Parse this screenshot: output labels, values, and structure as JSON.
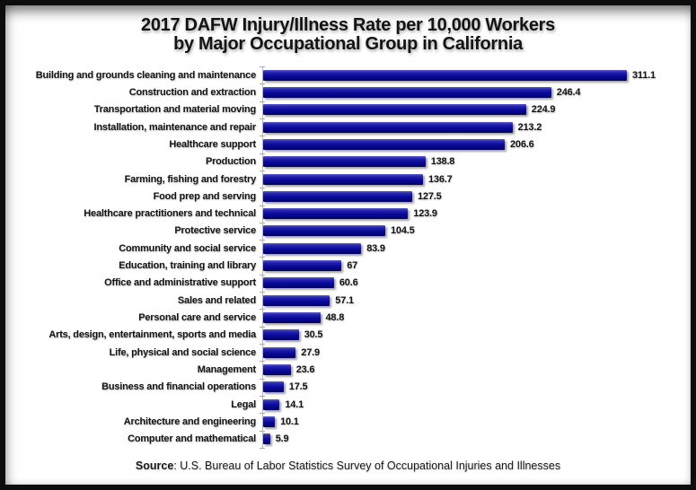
{
  "title": {
    "line1": "2017 DAFW Injury/Illness Rate per 10,000 Workers",
    "line2": "by Major Occupational Group in California"
  },
  "source": {
    "label": "Source",
    "rest": ": U.S. Bureau of Labor Statistics Survey of Occupational Injuries and Illnesses"
  },
  "chart_data": {
    "type": "bar",
    "orientation": "horizontal",
    "title": "2017 DAFW Injury/Illness Rate per 10,000 Workers by Major Occupational Group in California",
    "xlabel": "",
    "ylabel": "",
    "xlim": [
      0,
      330
    ],
    "grid": false,
    "legend": false,
    "value_labels": true,
    "sort": "descending",
    "categories": [
      "Building and grounds cleaning and maintenance",
      "Construction and extraction",
      "Transportation and material moving",
      "Installation, maintenance and repair",
      "Healthcare support",
      "Production",
      "Farming, fishing and forestry",
      "Food prep and serving",
      "Healthcare practitioners and technical",
      "Protective service",
      "Community and social service",
      "Education, training and library",
      "Office and administrative support",
      "Sales and related",
      "Personal care and service",
      "Arts, design, entertainment, sports and media",
      "Life, physical and social science",
      "Management",
      "Business and financial operations",
      "Legal",
      "Architecture and engineering",
      "Computer and mathematical"
    ],
    "values": [
      311.1,
      246.4,
      224.9,
      213.2,
      206.6,
      138.8,
      136.7,
      127.5,
      123.9,
      104.5,
      83.9,
      67,
      60.6,
      57.1,
      48.8,
      30.5,
      27.9,
      23.6,
      17.5,
      14.1,
      10.1,
      5.9
    ],
    "source_note": "Source: U.S. Bureau of Labor Statistics Survey of Occupational Injuries and Illnesses"
  },
  "colors": {
    "bar": "#0A0A9B",
    "bar_highlight": "#5A5ACE",
    "bar_dark_edge": "#000060",
    "text": "#141414",
    "axis": "#B8B8B8",
    "frame": "#0D0D0D",
    "background": "#FFFFFF"
  }
}
